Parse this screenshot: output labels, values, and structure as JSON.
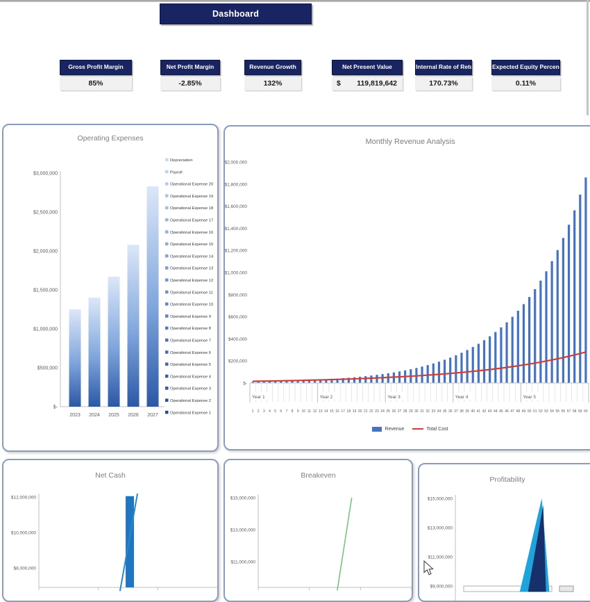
{
  "banner": {
    "title": "Dashboard"
  },
  "kpis": [
    {
      "label": "Gross Profit Margin",
      "value": "85%"
    },
    {
      "label": "Net Profit Margin",
      "value": "-2.85%"
    },
    {
      "label": "Revenue Growth",
      "value": "132%"
    },
    {
      "label": "Net Present Value",
      "prefix": "$",
      "value": "119,819,642"
    },
    {
      "label": "Internal Rate of Return",
      "value": "170.73%"
    },
    {
      "label": "Expected Equity Percent",
      "value": "0.11%"
    }
  ],
  "chart_data": [
    {
      "id": "operating_expenses",
      "type": "bar",
      "stacked": true,
      "title": "Operating Expenses",
      "categories": [
        "2023",
        "2024",
        "2025",
        "2026",
        "2027"
      ],
      "totals": [
        1250000,
        1400000,
        1670000,
        2080000,
        2830000
      ],
      "series_names": [
        "Depreciation",
        "Payroll",
        "Operational Expense 20",
        "Operational Expense 19",
        "Operational Expense 18",
        "Operational Expense 17",
        "Operational Expense 16",
        "Operational Expense 15",
        "Operational Expense 14",
        "Operational Expense 13",
        "Operational Expense 12",
        "Operational Expense 11",
        "Operational Expense 10",
        "Operational Expense 9",
        "Operational Expense 8",
        "Operational Expense 7",
        "Operational Expense 6",
        "Operational Expense 5",
        "Operational Expense 4",
        "Operational Expense 3",
        "Operational Expense 2",
        "Operational Expense 1"
      ],
      "y_ticks": [
        "$3,000,000",
        "$2,500,000",
        "$2,000,000",
        "$1,500,000",
        "$1,000,000",
        "$500,000",
        "$-"
      ],
      "ylim": [
        0,
        3000000
      ],
      "grid": false,
      "legend_position": "right",
      "bar_gradient_bottom": "#2b57a5",
      "bar_gradient_mid": "#7fa5dc",
      "bar_gradient_top": "#dce7f8",
      "legend_color_light": "#c7d9f4",
      "legend_color_dark": "#1e4c9d"
    },
    {
      "id": "monthly_revenue_analysis",
      "type": "bar",
      "title": "Monthly Revenue Analysis",
      "x_months": [
        1,
        2,
        3,
        4,
        5,
        6,
        7,
        8,
        9,
        10,
        11,
        12,
        13,
        14,
        15,
        16,
        17,
        18,
        19,
        20,
        21,
        22,
        23,
        24,
        25,
        26,
        27,
        28,
        29,
        30,
        31,
        32,
        33,
        34,
        35,
        36,
        37,
        38,
        39,
        40,
        41,
        42,
        43,
        44,
        45,
        46,
        47,
        48,
        49,
        50,
        51,
        52,
        53,
        54,
        55,
        56,
        57,
        58,
        59,
        60
      ],
      "year_groups": [
        "Year 1",
        "Year 2",
        "Year 3",
        "Year 4",
        "Year 5"
      ],
      "y_ticks": [
        "$2,000,000",
        "$1,800,000",
        "$1,600,000",
        "$1,400,000",
        "$1,200,000",
        "$1,000,000",
        "$800,000",
        "$600,000",
        "$400,000",
        "$200,000",
        "$-"
      ],
      "ylim": [
        0,
        2000000
      ],
      "grid": false,
      "legend_position": "bottom",
      "series": [
        {
          "name": "Revenue",
          "type": "bar",
          "color": "#4472c4",
          "values": [
            10900,
            11900,
            13000,
            14200,
            15500,
            16900,
            18400,
            20100,
            21900,
            23900,
            26100,
            28400,
            31000,
            33900,
            36900,
            40300,
            44000,
            48000,
            52300,
            57100,
            62300,
            67900,
            74100,
            80900,
            88200,
            96300,
            105000,
            114600,
            125000,
            136400,
            148800,
            162300,
            177100,
            193200,
            210800,
            230000,
            250900,
            273800,
            298700,
            325800,
            355500,
            387800,
            423100,
            461600,
            503600,
            549500,
            599500,
            654000,
            713600,
            778500,
            849300,
            926600,
            1010900,
            1102900,
            1203300,
            1312800,
            1432200,
            1562600,
            1704800,
            1859900
          ]
        },
        {
          "name": "Total Cost",
          "type": "line",
          "color": "#c8413c",
          "values": [
            15800,
            16500,
            17400,
            18200,
            19100,
            20100,
            21100,
            22200,
            23300,
            24400,
            25700,
            26900,
            28300,
            29700,
            31200,
            32700,
            34400,
            36100,
            37900,
            39800,
            41800,
            43900,
            46100,
            48400,
            50800,
            53300,
            56000,
            58800,
            61700,
            64800,
            68100,
            71500,
            75000,
            78800,
            82700,
            86900,
            91200,
            95800,
            100600,
            105600,
            110900,
            116400,
            122200,
            128400,
            134800,
            141500,
            148600,
            156000,
            163800,
            172000,
            180600,
            189600,
            199100,
            209100,
            219500,
            230500,
            242000,
            254100,
            266800,
            280200
          ]
        }
      ]
    },
    {
      "id": "net_cash",
      "type": "bar",
      "title": "Net Cash",
      "y_ticks": [
        "$12,000,000",
        "$10,000,000",
        "$8,000,000"
      ],
      "y_tick_top_value": 12000000,
      "y_tick_step": 2000000,
      "grid": false,
      "bar": {
        "x_frac": 0.591,
        "top_value": 12050000,
        "color": "#1f76c2"
      },
      "line": {
        "color": "#2e86c8",
        "points": [
          [
            0.545,
            6700000
          ],
          [
            0.627,
            12200000
          ]
        ]
      }
    },
    {
      "id": "breakeven",
      "type": "line",
      "title": "Breakeven",
      "y_ticks": [
        "$15,000,000",
        "$13,000,000",
        "$11,000,000"
      ],
      "y_tick_top_value": 15000000,
      "y_tick_step": 2000000,
      "grid": false,
      "line": {
        "color": "#79c47e",
        "points": [
          [
            0.602,
            9200000
          ],
          [
            0.679,
            15000000
          ]
        ]
      }
    },
    {
      "id": "profitability",
      "type": "area",
      "title": "Profitability",
      "y_ticks": [
        "$15,000,000",
        "$13,000,000",
        "$11,000,000",
        "$9,000,000"
      ],
      "y_tick_top_value": 15000000,
      "y_tick_step": 2000000,
      "grid": false,
      "areas": [
        {
          "color": "#1fa3dc",
          "points": [
            [
              0.57,
              8600000
            ],
            [
              0.695,
              15000000
            ],
            [
              0.738,
              8600000
            ]
          ]
        },
        {
          "color": "#17306b",
          "points": [
            [
              0.617,
              8600000
            ],
            [
              0.703,
              14550000
            ],
            [
              0.719,
              8600000
            ]
          ]
        }
      ]
    }
  ]
}
